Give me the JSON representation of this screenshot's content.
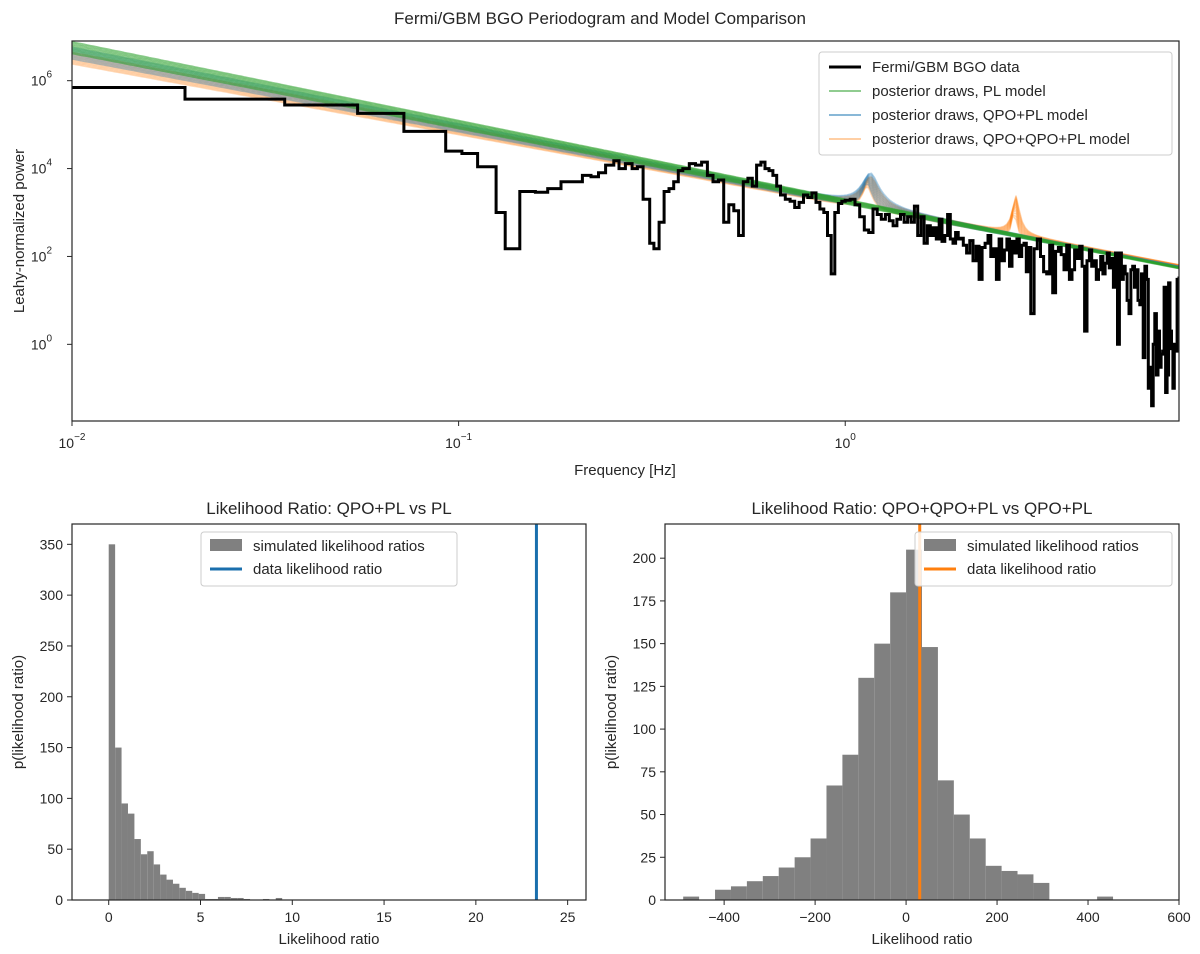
{
  "chart_data": [
    {
      "type": "line",
      "suptitle": "Fermi/GBM BGO Periodogram and Model Comparison",
      "title": "",
      "xlabel": "Frequency [Hz]",
      "ylabel": "Leahy-normalized power",
      "xscale": "log",
      "yscale": "log",
      "xlim": [
        0.01,
        7.3
      ],
      "ylim": [
        0.018,
        8000000
      ],
      "xticks": [
        0.01,
        0.1,
        1
      ],
      "xtick_labels": [
        [
          "10",
          "−2"
        ],
        [
          "10",
          "−1"
        ],
        [
          "10",
          "0"
        ]
      ],
      "yticks": [
        1,
        100,
        10000,
        1000000
      ],
      "ytick_labels": [
        [
          "10",
          "0"
        ],
        [
          "10",
          "2"
        ],
        [
          "10",
          "4"
        ],
        [
          "10",
          "6"
        ]
      ],
      "grid": false,
      "legend_position": "top-right",
      "legend": [
        {
          "label": "Fermi/GBM BGO data",
          "color": "#000000"
        },
        {
          "label": "posterior draws, PL model",
          "color": "#2ca02c"
        },
        {
          "label": "posterior draws, QPO+PL model",
          "color": "#1f77b4"
        },
        {
          "label": "posterior draws, QPO+QPO+PL model",
          "color": "#ff7f0e"
        }
      ],
      "series": [
        {
          "name": "Fermi/GBM BGO data",
          "color": "#000000",
          "style": "steps",
          "x": [
            0.01,
            0.0146,
            0.0196,
            0.0285,
            0.0355,
            0.0448,
            0.0548,
            0.0615,
            0.0722,
            0.083,
            0.0926,
            0.102,
            0.112,
            0.125,
            0.132,
            0.137,
            0.144,
            0.151,
            0.158,
            0.17,
            0.184,
            0.196,
            0.209,
            0.22,
            0.23,
            0.24,
            0.252,
            0.26,
            0.27,
            0.281,
            0.29,
            0.3,
            0.312,
            0.32,
            0.33,
            0.34,
            0.35,
            0.36,
            0.37,
            0.38,
            0.395,
            0.41,
            0.425,
            0.44,
            0.455,
            0.47,
            0.485,
            0.5,
            0.515,
            0.53,
            0.545,
            0.56,
            0.575,
            0.59,
            0.605,
            0.62,
            0.635,
            0.65,
            0.665,
            0.68,
            0.7,
            0.72,
            0.74,
            0.76,
            0.78,
            0.8,
            0.82,
            0.84,
            0.86,
            0.88,
            0.9,
            0.92,
            0.94,
            0.96,
            0.98,
            1.0,
            1.03,
            1.06,
            1.09,
            1.12,
            1.15,
            1.18,
            1.21,
            1.24,
            1.27,
            1.3,
            1.33,
            1.36,
            1.39,
            1.42,
            1.45,
            1.48,
            1.51,
            1.54,
            1.57,
            1.6,
            1.63,
            1.66,
            1.69,
            1.72,
            1.75,
            1.78,
            1.81,
            1.84,
            1.87,
            1.9,
            1.93,
            1.96,
            1.99,
            2.02,
            2.06,
            2.1,
            2.14,
            2.18,
            2.22,
            2.26,
            2.3,
            2.34,
            2.38,
            2.42,
            2.46,
            2.5,
            2.54,
            2.58,
            2.62,
            2.66,
            2.7,
            2.74,
            2.78,
            2.82,
            2.86,
            2.9,
            2.94,
            2.98,
            3.02,
            3.08,
            3.14,
            3.2,
            3.26,
            3.32,
            3.38,
            3.44,
            3.5,
            3.56,
            3.62,
            3.68,
            3.74,
            3.8,
            3.86,
            3.92,
            3.98,
            4.04,
            4.1,
            4.16,
            4.22,
            4.28,
            4.34,
            4.4,
            4.46,
            4.52,
            4.58,
            4.64,
            4.7,
            4.76,
            4.82,
            4.88,
            4.94,
            5.0,
            5.06,
            5.12,
            5.18,
            5.24,
            5.3,
            5.36,
            5.42,
            5.48,
            5.54,
            5.6,
            5.66,
            5.72,
            5.78,
            5.84,
            5.9,
            5.96,
            6.02,
            6.08,
            6.14,
            6.2,
            6.26,
            6.32,
            6.38,
            6.44,
            6.5,
            6.56,
            6.62,
            6.68,
            6.74,
            6.8,
            6.86,
            6.92,
            6.98,
            7.04,
            7.1,
            7.16,
            7.22,
            7.3
          ],
          "y": [
            700000,
            700000,
            380000,
            380000,
            280000,
            280000,
            180000,
            180000,
            70000,
            70000,
            25000,
            22000,
            11000,
            1000,
            150,
            150,
            3000,
            3000,
            2900,
            3500,
            5000,
            5000,
            7000,
            6500,
            8000,
            12000,
            15000,
            10000,
            13000,
            10000,
            11000,
            2000,
            200,
            150,
            600,
            3000,
            3500,
            5000,
            9000,
            10000,
            13000,
            12000,
            14000,
            7000,
            5000,
            5500,
            600,
            1500,
            1100,
            300,
            5000,
            6000,
            4000,
            12000,
            14000,
            10000,
            9000,
            7000,
            4000,
            2500,
            2000,
            1800,
            1300,
            1700,
            2500,
            2200,
            2800,
            1700,
            1200,
            1000,
            300,
            40,
            1000,
            1600,
            1800,
            1900,
            2000,
            1500,
            800,
            400,
            350,
            1200,
            900,
            700,
            900,
            650,
            500,
            700,
            900,
            600,
            800,
            600,
            1400,
            300,
            800,
            200,
            500,
            300,
            450,
            250,
            700,
            220,
            300,
            900,
            250,
            200,
            350,
            250,
            260,
            180,
            120,
            230,
            80,
            170,
            30,
            160,
            200,
            300,
            100,
            150,
            30,
            250,
            80,
            140,
            250,
            60,
            220,
            120,
            250,
            100,
            180,
            200,
            45,
            160,
            5,
            150,
            250,
            100,
            45,
            40,
            180,
            15,
            130,
            160,
            110,
            50,
            180,
            30,
            50,
            140,
            90,
            170,
            60,
            2,
            80,
            140,
            60,
            80,
            30,
            50,
            100,
            40,
            70,
            120,
            55,
            90,
            20,
            120,
            1,
            120,
            30,
            60,
            40,
            10,
            5,
            50,
            60,
            20,
            50,
            10,
            8,
            40,
            0.5,
            60,
            30,
            0.1,
            0.3,
            0.04,
            1,
            5,
            0.2,
            2,
            0.3,
            0.6,
            0.7,
            20,
            0.08,
            0.2,
            25,
            2,
            0.8,
            0.1,
            1,
            0.7,
            30,
            35
          ]
        },
        {
          "name": "posterior draws, PL model",
          "color": "#2ca02c",
          "model": "power law",
          "amplitude_at_1Hz": 1800,
          "index": 1.75,
          "n_draws": 10
        },
        {
          "name": "posterior draws, QPO+PL model",
          "color": "#1f77b4",
          "model": "power law + Lorentzian",
          "amplitude_at_1Hz": 1700,
          "index": 1.7,
          "qpo_frequency": 1.15,
          "qpo_peak_power": 5000,
          "n_draws": 10
        },
        {
          "name": "posterior draws, QPO+QPO+PL model",
          "color": "#ff7f0e",
          "model": "power law + 2 Lorentzians",
          "amplitude_at_1Hz": 1650,
          "index": 1.65,
          "qpo_frequency": 1.15,
          "qpo_peak_power": 4000,
          "qpo2_frequency": 2.75,
          "qpo2_peak_power": 1500,
          "n_draws": 12
        }
      ]
    },
    {
      "type": "histogram",
      "title": "Likelihood Ratio: QPO+PL vs PL",
      "xlabel": "Likelihood ratio",
      "ylabel": "p(likelihood ratio)",
      "xlim": [
        -2,
        26
      ],
      "ylim": [
        0,
        370
      ],
      "xticks": [
        0,
        5,
        10,
        15,
        20,
        25
      ],
      "yticks": [
        0,
        50,
        100,
        150,
        200,
        250,
        300,
        350
      ],
      "bin_edges": [
        0,
        0.35,
        0.7,
        1.05,
        1.4,
        1.75,
        2.1,
        2.45,
        2.8,
        3.15,
        3.5,
        3.85,
        4.2,
        4.55,
        4.9,
        5.25,
        5.6,
        5.95,
        6.3,
        6.65,
        7.0,
        7.35,
        7.7,
        8.05,
        8.4,
        8.75,
        9.1,
        9.45
      ],
      "counts": [
        350,
        150,
        95,
        85,
        60,
        45,
        48,
        35,
        25,
        20,
        16,
        12,
        9,
        7,
        6,
        1,
        1,
        3,
        3,
        2,
        2,
        1,
        0,
        0,
        1,
        0,
        2
      ],
      "bar_color": "#808080",
      "vline": {
        "label": "data likelihood ratio",
        "value": 23.3,
        "color": "#1a6fad"
      },
      "legend_position": "upper-center",
      "legend": [
        {
          "label": "simulated likelihood ratios",
          "color": "#808080"
        },
        {
          "label": "data likelihood ratio",
          "color": "#1a6fad"
        }
      ]
    },
    {
      "type": "histogram",
      "title": "Likelihood Ratio: QPO+QPO+PL vs QPO+PL",
      "xlabel": "Likelihood ratio",
      "ylabel": "p(likelihood ratio)",
      "xlim": [
        -530,
        600
      ],
      "ylim": [
        0,
        220
      ],
      "xticks": [
        -400,
        -200,
        0,
        200,
        400,
        600
      ],
      "xtick_labels": [
        "−400",
        "−200",
        "0",
        "200",
        "400",
        "600"
      ],
      "yticks": [
        0,
        25,
        50,
        75,
        100,
        125,
        150,
        175,
        200
      ],
      "bin_edges": [
        -490,
        -455,
        -420,
        -385,
        -350,
        -315,
        -280,
        -245,
        -210,
        -175,
        -140,
        -105,
        -70,
        -35,
        0,
        35,
        70,
        105,
        140,
        175,
        210,
        245,
        280,
        315,
        350,
        385,
        420,
        455
      ],
      "counts": [
        2,
        0,
        6,
        8,
        11,
        14,
        19,
        25,
        36,
        67,
        85,
        130,
        150,
        180,
        205,
        148,
        70,
        50,
        36,
        20,
        17,
        15,
        10,
        0,
        0,
        0,
        2
      ],
      "bar_color": "#808080",
      "vline": {
        "label": "data likelihood ratio",
        "value": 30,
        "color": "#ff7f0e"
      },
      "legend_position": "top-right",
      "legend": [
        {
          "label": "simulated likelihood ratios",
          "color": "#808080"
        },
        {
          "label": "data likelihood ratio",
          "color": "#ff7f0e"
        }
      ]
    }
  ]
}
